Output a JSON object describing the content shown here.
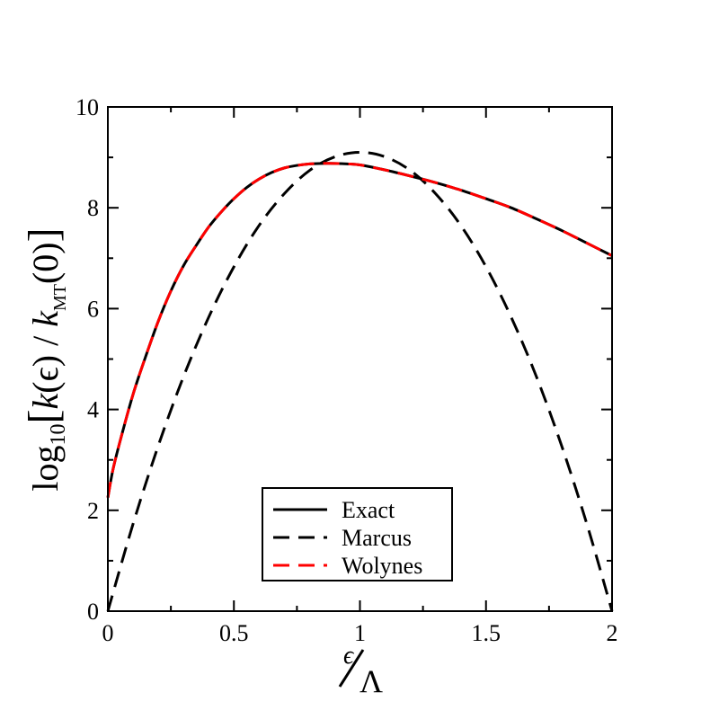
{
  "chart_data": {
    "type": "line",
    "title": "",
    "xlabel": {
      "numerator": "ϵ",
      "denominator": "Λ"
    },
    "ylabel": {
      "log": "log",
      "log_sub": "10",
      "k": "k",
      "arg": "(ϵ)",
      "slash": " / ",
      "k_sub": "MT",
      "arg0": "(0)"
    },
    "xlim": [
      0,
      2
    ],
    "ylim": [
      0,
      10
    ],
    "xticks": [
      {
        "value": 0,
        "label": "0"
      },
      {
        "value": 0.5,
        "label": "0.5"
      },
      {
        "value": 1,
        "label": "1"
      },
      {
        "value": 1.5,
        "label": "1.5"
      },
      {
        "value": 2,
        "label": "2"
      }
    ],
    "yticks": [
      {
        "value": 0,
        "label": "0"
      },
      {
        "value": 2,
        "label": "2"
      },
      {
        "value": 4,
        "label": "4"
      },
      {
        "value": 6,
        "label": "6"
      },
      {
        "value": 8,
        "label": "8"
      },
      {
        "value": 10,
        "label": "10"
      }
    ],
    "legend_position": "bottom-center",
    "series": [
      {
        "name": "Exact",
        "color": "#000000",
        "dash": "solid",
        "x": [
          0,
          0.02,
          0.05,
          0.1,
          0.15,
          0.2,
          0.25,
          0.3,
          0.35,
          0.4,
          0.45,
          0.5,
          0.55,
          0.6,
          0.65,
          0.7,
          0.75,
          0.8,
          0.85,
          0.9,
          0.95,
          1.0,
          1.1,
          1.2,
          1.3,
          1.4,
          1.5,
          1.6,
          1.7,
          1.8,
          1.9,
          2.0
        ],
        "y": [
          2.25,
          2.8,
          3.4,
          4.3,
          5.05,
          5.75,
          6.35,
          6.85,
          7.25,
          7.62,
          7.92,
          8.18,
          8.4,
          8.57,
          8.7,
          8.79,
          8.84,
          8.87,
          8.88,
          8.88,
          8.87,
          8.85,
          8.75,
          8.63,
          8.5,
          8.35,
          8.18,
          8.0,
          7.78,
          7.55,
          7.3,
          7.05
        ]
      },
      {
        "name": "Marcus",
        "color": "#000000",
        "dash": "dashed",
        "x": [
          0,
          0.1,
          0.2,
          0.3,
          0.4,
          0.5,
          0.6,
          0.7,
          0.8,
          0.9,
          1.0,
          1.1,
          1.2,
          1.3,
          1.4,
          1.5,
          1.6,
          1.7,
          1.8,
          1.9,
          2.0
        ],
        "y": [
          0.0,
          1.73,
          3.28,
          4.65,
          5.83,
          6.83,
          7.65,
          8.28,
          8.74,
          9.01,
          9.1,
          9.01,
          8.74,
          8.28,
          7.65,
          6.83,
          5.83,
          4.65,
          3.28,
          1.73,
          0.0
        ]
      },
      {
        "name": "Wolynes",
        "color": "#ff0000",
        "dash": "dashed",
        "x": [
          0,
          0.02,
          0.05,
          0.1,
          0.15,
          0.2,
          0.25,
          0.3,
          0.35,
          0.4,
          0.45,
          0.5,
          0.55,
          0.6,
          0.65,
          0.7,
          0.75,
          0.8,
          0.85,
          0.9,
          0.95,
          1.0,
          1.1,
          1.2,
          1.3,
          1.4,
          1.5,
          1.6,
          1.7,
          1.8,
          1.9,
          2.0
        ],
        "y": [
          2.25,
          2.8,
          3.4,
          4.3,
          5.05,
          5.75,
          6.35,
          6.85,
          7.25,
          7.62,
          7.92,
          8.18,
          8.4,
          8.57,
          8.7,
          8.79,
          8.84,
          8.87,
          8.88,
          8.88,
          8.87,
          8.85,
          8.75,
          8.63,
          8.5,
          8.35,
          8.18,
          8.0,
          7.78,
          7.55,
          7.3,
          7.05
        ]
      }
    ]
  }
}
